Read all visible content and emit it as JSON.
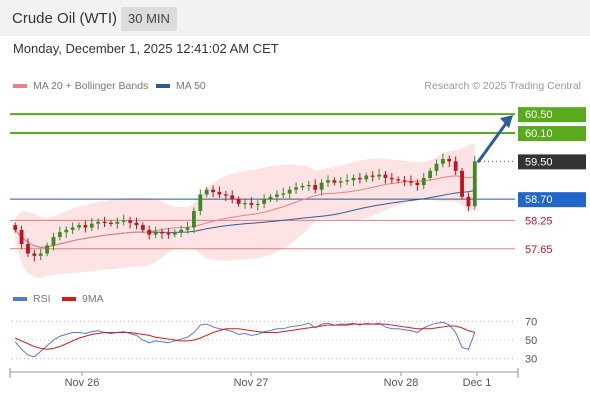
{
  "header": {
    "title": "Crude Oil (WTI)",
    "timeframe": "30 MIN"
  },
  "datetime": "Monday, December 1, 2025 12:41:02 AM CET",
  "legend": {
    "ma20": "MA 20 + Bollinger Bands",
    "ma50": "MA 50",
    "credit": "Research © 2025 Trading Central"
  },
  "rsi_legend": {
    "rsi": "RSI",
    "ma": "9MA"
  },
  "colors": {
    "bollinger_fill": "#fde3e3",
    "ma20": "#f08080",
    "ma50": "#2c5d9a",
    "bull": "#3c8a26",
    "bear": "#c0141d",
    "target": "#5aaa1e",
    "pivot": "#2c5d9a",
    "current": "#333333",
    "support": "#c0141d",
    "rsi_line": "#5578d8",
    "rsi_ma": "#d81c1c",
    "arrow": "#2c5d9a"
  },
  "chart_data": [
    {
      "type": "candlestick",
      "title": "Crude Oil (WTI)",
      "timeframe": "30 MIN",
      "x_ticks": [
        "Nov 26",
        "Nov 27",
        "Nov 28",
        "Dec 1"
      ],
      "ylim": [
        57.2,
        60.8
      ],
      "levels": [
        {
          "value": 60.5,
          "label": "60.50",
          "kind": "resistance"
        },
        {
          "value": 60.1,
          "label": "60.10",
          "kind": "resistance"
        },
        {
          "value": 59.5,
          "label": "59.50",
          "kind": "current"
        },
        {
          "value": 58.7,
          "label": "58.70",
          "kind": "pivot"
        },
        {
          "value": 58.25,
          "label": "58.25",
          "kind": "support"
        },
        {
          "value": 57.65,
          "label": "57.65",
          "kind": "support"
        }
      ],
      "series": [
        {
          "name": "MA 20 + Bollinger Bands"
        },
        {
          "name": "MA 50"
        }
      ],
      "closes": [
        58.05,
        57.75,
        57.55,
        57.5,
        57.55,
        57.72,
        57.9,
        58.0,
        58.05,
        58.1,
        58.15,
        58.1,
        58.18,
        58.22,
        58.2,
        58.18,
        58.22,
        58.25,
        58.2,
        58.15,
        58.05,
        57.95,
        58.0,
        57.98,
        57.95,
        58.0,
        58.05,
        58.1,
        58.45,
        58.8,
        58.9,
        58.85,
        58.8,
        58.78,
        58.7,
        58.6,
        58.62,
        58.58,
        58.6,
        58.7,
        58.75,
        58.8,
        58.82,
        58.9,
        58.95,
        58.98,
        59.0,
        58.9,
        59.05,
        59.1,
        59.05,
        59.08,
        59.1,
        59.15,
        59.12,
        59.2,
        59.18,
        59.22,
        59.15,
        59.12,
        59.1,
        59.08,
        59.05,
        59.0,
        59.15,
        59.3,
        59.45,
        59.55,
        59.5,
        59.3,
        58.75,
        58.55,
        59.5
      ]
    },
    {
      "type": "line",
      "title": "RSI",
      "ylim": [
        20,
        80
      ],
      "y_ticks": [
        70,
        50,
        30
      ],
      "series": [
        {
          "name": "RSI",
          "values": [
            48,
            40,
            34,
            32,
            38,
            44,
            50,
            54,
            56,
            58,
            58,
            57,
            59,
            60,
            58,
            57,
            58,
            59,
            57,
            55,
            50,
            47,
            49,
            48,
            47,
            49,
            51,
            53,
            58,
            66,
            67,
            64,
            62,
            61,
            59,
            56,
            57,
            55,
            56,
            59,
            60,
            62,
            62,
            64,
            65,
            66,
            68,
            63,
            67,
            68,
            66,
            67,
            67,
            68,
            66,
            68,
            67,
            68,
            64,
            62,
            62,
            61,
            60,
            58,
            63,
            66,
            68,
            69,
            66,
            58,
            42,
            40,
            58
          ]
        },
        {
          "name": "9MA",
          "values": [
            52,
            49,
            46,
            43,
            41,
            40,
            41,
            43,
            46,
            49,
            52,
            54,
            56,
            57,
            58,
            58,
            58,
            58,
            58,
            57,
            56,
            55,
            53,
            52,
            51,
            50,
            49,
            49,
            50,
            52,
            55,
            58,
            60,
            62,
            62,
            62,
            61,
            60,
            59,
            58,
            58,
            58,
            59,
            60,
            61,
            62,
            63,
            64,
            65,
            66,
            66,
            66,
            66,
            67,
            67,
            67,
            67,
            67,
            67,
            66,
            65,
            64,
            63,
            62,
            62,
            62,
            63,
            64,
            65,
            65,
            63,
            60,
            58
          ]
        }
      ]
    }
  ]
}
